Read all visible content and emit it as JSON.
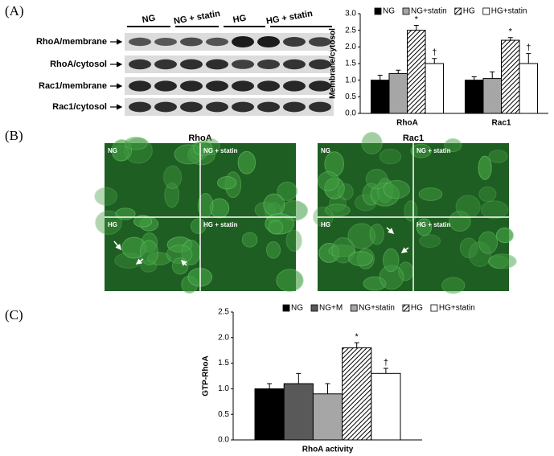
{
  "figure": {
    "panel_labels": [
      "(A)",
      "(B)",
      "(C)"
    ],
    "blot": {
      "columns": [
        "NG",
        "NG + statin",
        "HG",
        "HG + statin"
      ],
      "rows": [
        "RhoA/membrane",
        "RhoA/cytosol",
        "Rac1/membrane",
        "Rac1/cytosol"
      ]
    },
    "microscopy": [
      {
        "title": "RhoA",
        "panels": [
          "NG",
          "NG + statin",
          "HG",
          "HG + statin"
        ]
      },
      {
        "title": "Rac1",
        "panels": [
          "NG",
          "NG + statin",
          "HG",
          "HG + statin"
        ]
      }
    ]
  },
  "chart_data": [
    {
      "type": "bar",
      "ylabel": "Membrane/cytosol",
      "categories": [
        "RhoA",
        "Rac1"
      ],
      "series": [
        {
          "name": "NG",
          "color": "#000000",
          "values": [
            1.0,
            1.0
          ],
          "errors": [
            0.15,
            0.1
          ]
        },
        {
          "name": "NG+statin",
          "color": "#a6a6a6",
          "values": [
            1.2,
            1.05
          ],
          "errors": [
            0.1,
            0.2
          ]
        },
        {
          "name": "HG",
          "color": "#000000",
          "hatch": true,
          "values": [
            2.5,
            2.2
          ],
          "errors": [
            0.15,
            0.08
          ]
        },
        {
          "name": "HG+statin",
          "color": "#ffffff",
          "values": [
            1.5,
            1.5
          ],
          "errors": [
            0.15,
            0.3
          ]
        }
      ],
      "annotations": [
        {
          "series": 2,
          "category": 0,
          "text": "*"
        },
        {
          "series": 3,
          "category": 0,
          "text": "†"
        },
        {
          "series": 2,
          "category": 1,
          "text": "*"
        },
        {
          "series": 3,
          "category": 1,
          "text": "†"
        }
      ],
      "ylim": [
        0,
        3
      ],
      "yticks": [
        {
          "value": 0,
          "label": "0.0"
        },
        {
          "value": 0.5,
          "label": "0.5"
        },
        {
          "value": 1,
          "label": "1.0"
        },
        {
          "value": 1.5,
          "label": "1.5"
        },
        {
          "value": 2,
          "label": "2.0"
        },
        {
          "value": 2.5,
          "label": "2.5"
        },
        {
          "value": 3,
          "label": "3.0"
        }
      ],
      "legend": "top"
    },
    {
      "type": "bar",
      "ylabel": "GTP-RhoA",
      "categories": [
        "RhoA activity"
      ],
      "series": [
        {
          "name": "NG",
          "color": "#000000",
          "values": [
            1.0
          ],
          "errors": [
            0.1
          ]
        },
        {
          "name": "NG+M",
          "color": "#595959",
          "values": [
            1.1
          ],
          "errors": [
            0.2
          ]
        },
        {
          "name": "NG+statin",
          "color": "#a6a6a6",
          "values": [
            0.9
          ],
          "errors": [
            0.2
          ]
        },
        {
          "name": "HG",
          "color": "#000000",
          "hatch": true,
          "values": [
            1.8
          ],
          "errors": [
            0.1
          ]
        },
        {
          "name": "HG+statin",
          "color": "#ffffff",
          "values": [
            1.3
          ],
          "errors": [
            0.1
          ]
        }
      ],
      "annotations": [
        {
          "series": 3,
          "category": 0,
          "text": "*"
        },
        {
          "series": 4,
          "category": 0,
          "text": "†"
        }
      ],
      "ylim": [
        0,
        2.5
      ],
      "yticks": [
        {
          "value": 0,
          "label": "0.0"
        },
        {
          "value": 0.5,
          "label": "0.5"
        },
        {
          "value": 1,
          "label": "1.0"
        },
        {
          "value": 1.5,
          "label": "1.5"
        },
        {
          "value": 2,
          "label": "2.0"
        },
        {
          "value": 2.5,
          "label": "2.5"
        }
      ],
      "legend": "top"
    }
  ]
}
